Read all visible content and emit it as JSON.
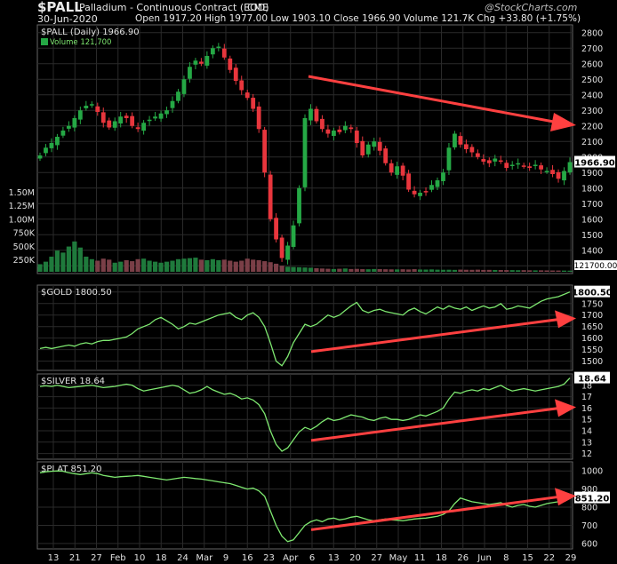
{
  "header": {
    "ticker": "$PALL",
    "name": "Palladium - Continuous Contract (EOD)",
    "exchange": "CME",
    "date": "30-Jun-2020",
    "ohlc": "Open 1917.20  High 1977.00  Low 1903.10  Close 1966.90  Volume 121.7K  Chg +33.80 (+1.75%)",
    "watermark": "@StockCharts.com"
  },
  "colors": {
    "bg": "#000000",
    "grid": "#2a2a2a",
    "up": "#25a845",
    "down": "#e8363d",
    "line": "#7ee870",
    "arrow": "#ff4040",
    "vol_up": "#1f7a3c",
    "vol_down": "#7a3f47",
    "label_bg": "#ffffff"
  },
  "x_labels": [
    "13",
    "21",
    "27",
    "Feb",
    "10",
    "18",
    "24",
    "Mar",
    "9",
    "16",
    "23",
    "Apr",
    "6",
    "13",
    "20",
    "27",
    "May",
    "11",
    "18",
    "26",
    "Jun",
    "8",
    "15",
    "22",
    "29"
  ],
  "chart_data": [
    {
      "type": "candlestick",
      "title": "$PALL (Daily) 1966.90",
      "volume_label": "Volume 121,700",
      "ylim": [
        1250,
        2850
      ],
      "y_ticks": [
        1300,
        1400,
        1500,
        1600,
        1700,
        1800,
        1900,
        2000,
        2100,
        2200,
        2300,
        2400,
        2500,
        2600,
        2700,
        2800
      ],
      "last_value_label": "1966.90",
      "volume_ticks": [
        "250K",
        "500K",
        "750K",
        "1.00M",
        "1.25M",
        "1.50M"
      ],
      "volume_last_label": "121700.00",
      "closes": [
        2010,
        2060,
        2090,
        2130,
        2170,
        2200,
        2250,
        2300,
        2330,
        2340,
        2290,
        2220,
        2190,
        2230,
        2260,
        2250,
        2200,
        2180,
        2220,
        2240,
        2260,
        2280,
        2300,
        2360,
        2420,
        2500,
        2580,
        2620,
        2600,
        2650,
        2700,
        2710,
        2640,
        2560,
        2490,
        2430,
        2380,
        2310,
        2180,
        1900,
        1600,
        1470,
        1350,
        1430,
        1560,
        1800,
        2250,
        2310,
        2230,
        2180,
        2150,
        2170,
        2160,
        2200,
        2180,
        2090,
        2010,
        2080,
        2100,
        2040,
        1960,
        1900,
        1940,
        1880,
        1790,
        1760,
        1770,
        1780,
        1820,
        1850,
        1900,
        2060,
        2150,
        2080,
        2050,
        2030,
        2000,
        1970,
        1960,
        1990,
        1970,
        1930,
        1950,
        1960,
        1940,
        1930,
        1950,
        1920,
        1910,
        1890,
        1860,
        1910,
        1966.9
      ],
      "volumes": [
        150,
        200,
        300,
        420,
        380,
        500,
        600,
        480,
        300,
        250,
        220,
        260,
        240,
        180,
        200,
        230,
        210,
        250,
        260,
        220,
        200,
        180,
        200,
        220,
        250,
        260,
        270,
        280,
        240,
        230,
        250,
        230,
        240,
        220,
        200,
        220,
        260,
        240,
        230,
        210,
        190,
        160,
        120,
        100,
        95,
        90,
        85,
        80,
        70,
        65,
        60,
        55,
        60,
        65,
        55,
        58,
        52,
        50,
        55,
        54,
        50,
        48,
        47,
        50,
        46,
        52,
        45,
        44,
        47,
        42,
        40,
        41,
        38,
        43,
        40,
        39,
        42,
        37,
        38,
        36,
        35,
        34,
        33,
        31,
        32,
        30,
        28,
        29,
        27,
        26,
        25,
        24,
        22
      ]
    },
    {
      "type": "line",
      "title": "$GOLD 1800.50",
      "ylim": [
        1460,
        1830
      ],
      "y_ticks": [
        1500,
        1550,
        1600,
        1650,
        1700,
        1750,
        1800
      ],
      "last_value_label": "1800.50",
      "values": [
        1555,
        1560,
        1555,
        1560,
        1565,
        1570,
        1565,
        1575,
        1580,
        1575,
        1585,
        1590,
        1590,
        1595,
        1600,
        1605,
        1620,
        1640,
        1650,
        1660,
        1680,
        1690,
        1675,
        1660,
        1640,
        1650,
        1665,
        1660,
        1670,
        1680,
        1690,
        1700,
        1705,
        1710,
        1690,
        1680,
        1700,
        1710,
        1690,
        1650,
        1580,
        1500,
        1480,
        1520,
        1580,
        1620,
        1660,
        1650,
        1660,
        1680,
        1700,
        1690,
        1700,
        1720,
        1740,
        1755,
        1720,
        1710,
        1720,
        1725,
        1715,
        1710,
        1705,
        1700,
        1720,
        1730,
        1715,
        1705,
        1720,
        1735,
        1725,
        1740,
        1730,
        1725,
        1735,
        1720,
        1730,
        1740,
        1730,
        1735,
        1750,
        1725,
        1730,
        1740,
        1735,
        1730,
        1745,
        1760,
        1770,
        1775,
        1780,
        1790,
        1800.5
      ]
    },
    {
      "type": "line",
      "title": "$SILVER 18.64",
      "ylim": [
        11.5,
        19
      ],
      "y_ticks": [
        12,
        13,
        14,
        15,
        16,
        17,
        18
      ],
      "last_value_label": "18.64",
      "values": [
        17.9,
        17.95,
        17.9,
        18.0,
        17.9,
        17.8,
        17.85,
        17.9,
        17.95,
        18.0,
        17.9,
        17.8,
        17.85,
        17.9,
        18.0,
        18.1,
        18.0,
        17.7,
        17.5,
        17.6,
        17.7,
        17.8,
        17.9,
        18.0,
        17.9,
        17.6,
        17.3,
        17.4,
        17.6,
        17.9,
        17.6,
        17.4,
        17.2,
        17.3,
        17.1,
        16.8,
        16.9,
        16.7,
        16.3,
        15.5,
        14.0,
        12.8,
        12.2,
        12.5,
        13.2,
        13.9,
        14.3,
        14.1,
        14.4,
        14.8,
        15.1,
        14.9,
        15.0,
        15.2,
        15.4,
        15.3,
        15.2,
        15.0,
        14.9,
        15.1,
        15.2,
        15.0,
        15.0,
        14.9,
        15.0,
        15.2,
        15.4,
        15.3,
        15.5,
        15.7,
        16.0,
        16.8,
        17.4,
        17.3,
        17.5,
        17.6,
        17.5,
        17.7,
        17.6,
        17.8,
        18.0,
        17.7,
        17.5,
        17.6,
        17.7,
        17.6,
        17.5,
        17.6,
        17.7,
        17.8,
        17.9,
        18.1,
        18.64
      ]
    },
    {
      "type": "line",
      "title": "$PLAT 851.20",
      "ylim": [
        570,
        1050
      ],
      "y_ticks": [
        600,
        700,
        800,
        900,
        1000
      ],
      "last_value_label": "851.20",
      "values": [
        990,
        995,
        998,
        1000,
        998,
        990,
        985,
        980,
        985,
        990,
        985,
        975,
        970,
        965,
        968,
        970,
        972,
        975,
        970,
        965,
        960,
        955,
        950,
        955,
        960,
        965,
        962,
        958,
        955,
        950,
        945,
        940,
        935,
        930,
        920,
        910,
        900,
        905,
        890,
        860,
        780,
        700,
        640,
        610,
        620,
        660,
        700,
        720,
        730,
        720,
        735,
        740,
        730,
        735,
        745,
        750,
        740,
        730,
        725,
        730,
        735,
        730,
        728,
        725,
        730,
        735,
        738,
        740,
        745,
        750,
        760,
        780,
        820,
        850,
        840,
        830,
        825,
        820,
        815,
        820,
        825,
        810,
        800,
        810,
        815,
        805,
        800,
        810,
        820,
        825,
        830,
        840,
        851.2
      ]
    }
  ]
}
